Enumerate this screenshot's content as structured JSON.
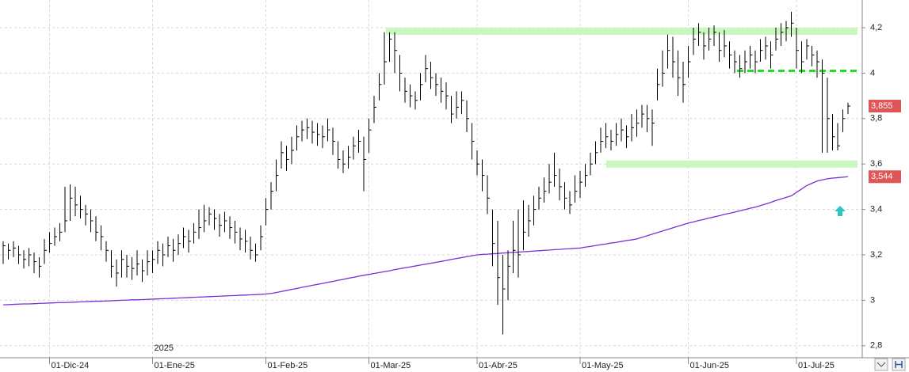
{
  "chart_data": {
    "type": "ohlc",
    "color": "#000000",
    "year_label": "2025",
    "categories": [
      null,
      null,
      null,
      null,
      null,
      null,
      null,
      null,
      null,
      "01-Dic-24",
      null,
      null,
      null,
      null,
      null,
      null,
      null,
      null,
      null,
      null,
      null,
      null,
      null,
      null,
      null,
      null,
      null,
      null,
      null,
      "01-Ene-25",
      null,
      null,
      null,
      null,
      null,
      null,
      null,
      null,
      null,
      null,
      null,
      null,
      null,
      null,
      null,
      null,
      null,
      null,
      null,
      null,
      null,
      "01-Feb-25",
      null,
      null,
      null,
      null,
      null,
      null,
      null,
      null,
      null,
      null,
      null,
      null,
      null,
      null,
      null,
      null,
      null,
      null,
      null,
      "01-Mar-25",
      null,
      null,
      null,
      null,
      null,
      null,
      null,
      null,
      null,
      null,
      null,
      null,
      null,
      null,
      null,
      null,
      null,
      null,
      null,
      null,
      "01-Abr-25",
      null,
      null,
      null,
      null,
      null,
      null,
      null,
      null,
      null,
      null,
      null,
      null,
      null,
      null,
      null,
      null,
      null,
      null,
      null,
      "01-May-25",
      null,
      null,
      null,
      null,
      null,
      null,
      null,
      null,
      null,
      null,
      null,
      null,
      null,
      null,
      null,
      null,
      null,
      null,
      null,
      null,
      "01-Jun-25",
      null,
      null,
      null,
      null,
      null,
      null,
      null,
      null,
      null,
      null,
      null,
      null,
      null,
      null,
      null,
      null,
      null,
      null,
      null,
      null,
      "01-Jul-25",
      null,
      null,
      null,
      null,
      null,
      null,
      null,
      null,
      null,
      null
    ],
    "high": [
      3.26,
      3.25,
      3.26,
      3.24,
      3.22,
      3.23,
      3.21,
      3.19,
      3.27,
      3.3,
      3.32,
      3.34,
      3.5,
      3.51,
      3.5,
      3.46,
      3.42,
      3.4,
      3.37,
      3.33,
      3.26,
      3.22,
      3.18,
      3.22,
      3.2,
      3.19,
      3.22,
      3.18,
      3.22,
      3.22,
      3.26,
      3.25,
      3.28,
      3.27,
      3.29,
      3.32,
      3.31,
      3.34,
      3.4,
      3.42,
      3.41,
      3.4,
      3.38,
      3.39,
      3.37,
      3.35,
      3.32,
      3.31,
      3.28,
      3.25,
      3.33,
      3.45,
      3.52,
      3.62,
      3.7,
      3.68,
      3.72,
      3.77,
      3.79,
      3.8,
      3.79,
      3.78,
      3.77,
      3.8,
      3.76,
      3.7,
      3.66,
      3.68,
      3.72,
      3.75,
      3.72,
      3.8,
      3.9,
      4.0,
      4.18,
      4.18,
      4.18,
      4.08,
      3.98,
      3.95,
      3.92,
      4.0,
      4.08,
      4.05,
      4.0,
      3.98,
      3.96,
      3.9,
      3.92,
      3.92,
      3.88,
      3.78,
      3.66,
      3.62,
      3.55,
      3.4,
      3.35,
      3.2,
      3.22,
      3.35,
      3.4,
      3.44,
      3.42,
      3.46,
      3.5,
      3.54,
      3.6,
      3.65,
      3.58,
      3.52,
      3.48,
      3.55,
      3.57,
      3.6,
      3.65,
      3.7,
      3.76,
      3.78,
      3.75,
      3.78,
      3.8,
      3.77,
      3.82,
      3.84,
      3.86,
      3.86,
      3.84,
      4.02,
      4.1,
      4.17,
      4.16,
      4.1,
      4.05,
      4.12,
      4.2,
      4.22,
      4.18,
      4.2,
      4.21,
      4.18,
      4.19,
      4.14,
      4.1,
      4.08,
      4.1,
      4.12,
      4.1,
      4.15,
      4.16,
      4.14,
      4.2,
      4.22,
      4.23,
      4.27,
      4.2,
      4.14,
      4.15,
      4.12,
      4.1,
      4.06,
      3.98,
      3.82,
      3.78,
      3.84,
      3.87
    ],
    "low": [
      3.16,
      3.18,
      3.19,
      3.16,
      3.14,
      3.15,
      3.12,
      3.1,
      3.16,
      3.21,
      3.24,
      3.26,
      3.3,
      3.35,
      3.37,
      3.36,
      3.33,
      3.3,
      3.26,
      3.22,
      3.17,
      3.1,
      3.06,
      3.1,
      3.1,
      3.09,
      3.11,
      3.08,
      3.11,
      3.12,
      3.16,
      3.15,
      3.19,
      3.17,
      3.2,
      3.23,
      3.21,
      3.25,
      3.27,
      3.3,
      3.33,
      3.31,
      3.28,
      3.3,
      3.27,
      3.25,
      3.22,
      3.21,
      3.18,
      3.17,
      3.22,
      3.33,
      3.4,
      3.48,
      3.58,
      3.57,
      3.6,
      3.66,
      3.7,
      3.71,
      3.69,
      3.68,
      3.67,
      3.7,
      3.64,
      3.58,
      3.56,
      3.58,
      3.62,
      3.65,
      3.48,
      3.65,
      3.78,
      3.88,
      3.95,
      4.05,
      4.0,
      3.92,
      3.87,
      3.85,
      3.84,
      3.88,
      3.96,
      3.93,
      3.9,
      3.87,
      3.84,
      3.78,
      3.8,
      3.82,
      3.74,
      3.62,
      3.55,
      3.48,
      3.38,
      3.15,
      2.98,
      2.85,
      3.0,
      3.12,
      3.1,
      3.22,
      3.28,
      3.33,
      3.4,
      3.43,
      3.47,
      3.5,
      3.44,
      3.4,
      3.38,
      3.43,
      3.45,
      3.5,
      3.55,
      3.6,
      3.65,
      3.67,
      3.66,
      3.68,
      3.7,
      3.67,
      3.7,
      3.72,
      3.76,
      3.74,
      3.68,
      3.88,
      3.94,
      4.02,
      3.98,
      3.9,
      3.87,
      3.98,
      4.08,
      4.12,
      4.06,
      4.1,
      4.12,
      4.05,
      4.07,
      4.02,
      4.0,
      3.98,
      4.0,
      4.02,
      4.0,
      4.05,
      4.06,
      4.02,
      4.1,
      4.12,
      4.14,
      4.16,
      4.02,
      4.0,
      4.06,
      4.03,
      3.98,
      3.65,
      3.65,
      3.66,
      3.66,
      3.74,
      3.82
    ],
    "close": [
      3.24,
      3.22,
      3.23,
      3.2,
      3.18,
      3.2,
      3.17,
      3.15,
      3.22,
      3.25,
      3.28,
      3.3,
      3.35,
      3.45,
      3.42,
      3.4,
      3.38,
      3.35,
      3.3,
      3.28,
      3.22,
      3.15,
      3.12,
      3.18,
      3.15,
      3.14,
      3.16,
      3.13,
      3.17,
      3.18,
      3.22,
      3.2,
      3.24,
      3.22,
      3.25,
      3.28,
      3.26,
      3.3,
      3.32,
      3.35,
      3.38,
      3.36,
      3.33,
      3.35,
      3.32,
      3.3,
      3.27,
      3.26,
      3.22,
      3.2,
      3.28,
      3.4,
      3.48,
      3.55,
      3.65,
      3.62,
      3.66,
      3.72,
      3.75,
      3.76,
      3.74,
      3.73,
      3.72,
      3.75,
      3.7,
      3.62,
      3.6,
      3.63,
      3.68,
      3.7,
      3.62,
      3.75,
      3.85,
      3.95,
      4.05,
      4.15,
      4.1,
      4.0,
      3.92,
      3.9,
      3.88,
      3.95,
      4.02,
      3.98,
      3.95,
      3.92,
      3.9,
      3.82,
      3.85,
      3.88,
      3.8,
      3.7,
      3.6,
      3.55,
      3.45,
      3.25,
      3.1,
      3.05,
      3.15,
      3.22,
      3.2,
      3.3,
      3.35,
      3.4,
      3.45,
      3.48,
      3.52,
      3.55,
      3.5,
      3.45,
      3.42,
      3.48,
      3.52,
      3.55,
      3.6,
      3.65,
      3.7,
      3.72,
      3.7,
      3.73,
      3.75,
      3.72,
      3.76,
      3.78,
      3.82,
      3.8,
      3.78,
      3.95,
      4.0,
      4.1,
      4.05,
      3.98,
      3.95,
      4.05,
      4.15,
      4.18,
      4.12,
      4.15,
      4.18,
      4.1,
      4.12,
      4.08,
      4.05,
      4.02,
      4.05,
      4.08,
      4.05,
      4.1,
      4.12,
      4.08,
      4.15,
      4.18,
      4.2,
      4.22,
      4.1,
      4.05,
      4.12,
      4.08,
      4.05,
      4.0,
      3.8,
      3.72,
      3.68,
      3.8,
      3.855
    ],
    "moving_average": {
      "color": "#7b2fd6",
      "values": [
        2.98,
        2.981,
        2.982,
        2.983,
        2.984,
        2.984,
        2.985,
        2.986,
        2.987,
        2.988,
        2.989,
        2.99,
        2.99,
        2.991,
        2.992,
        2.993,
        2.994,
        2.995,
        2.996,
        2.996,
        2.997,
        2.998,
        2.999,
        3.0,
        3.001,
        3.002,
        3.002,
        3.003,
        3.004,
        3.005,
        3.006,
        3.007,
        3.008,
        3.009,
        3.01,
        3.011,
        3.012,
        3.013,
        3.014,
        3.015,
        3.016,
        3.017,
        3.018,
        3.019,
        3.02,
        3.021,
        3.022,
        3.023,
        3.024,
        3.025,
        3.026,
        3.028,
        3.03,
        3.034,
        3.039,
        3.043,
        3.048,
        3.052,
        3.057,
        3.061,
        3.066,
        3.07,
        3.074,
        3.079,
        3.083,
        3.088,
        3.092,
        3.097,
        3.101,
        3.106,
        3.11,
        3.114,
        3.118,
        3.122,
        3.126,
        3.13,
        3.135,
        3.139,
        3.143,
        3.147,
        3.151,
        3.155,
        3.159,
        3.163,
        3.167,
        3.171,
        3.175,
        3.18,
        3.184,
        3.188,
        3.192,
        3.196,
        3.2,
        3.202,
        3.203,
        3.205,
        3.206,
        3.208,
        3.209,
        3.211,
        3.212,
        3.214,
        3.215,
        3.217,
        3.218,
        3.22,
        3.221,
        3.223,
        3.224,
        3.226,
        3.227,
        3.229,
        3.23,
        3.234,
        3.237,
        3.241,
        3.245,
        3.248,
        3.252,
        3.255,
        3.259,
        3.263,
        3.266,
        3.27,
        3.277,
        3.284,
        3.291,
        3.298,
        3.305,
        3.312,
        3.319,
        3.326,
        3.333,
        3.34,
        3.345,
        3.351,
        3.356,
        3.362,
        3.367,
        3.372,
        3.378,
        3.383,
        3.388,
        3.394,
        3.399,
        3.405,
        3.41,
        3.417,
        3.424,
        3.431,
        3.439,
        3.446,
        3.453,
        3.46,
        3.475,
        3.49,
        3.505,
        3.515,
        3.525,
        3.53,
        3.535,
        3.538,
        3.54,
        3.542,
        3.544
      ]
    },
    "levels": [
      {
        "value": 4.185,
        "color": "#c8f7c0",
        "style": "band"
      },
      {
        "value": 3.6,
        "color": "#c8f7c0",
        "style": "band"
      },
      {
        "value": 4.01,
        "color": "#22dd22",
        "style": "dashed"
      }
    ],
    "price_tags": [
      {
        "value": 3.855,
        "label": "3,855"
      },
      {
        "value": 3.544,
        "label": "3,544"
      }
    ],
    "tag_color": "#e05555",
    "ylim": [
      2.747,
      4.322
    ],
    "yticks": [
      {
        "value": 2.8,
        "label": "2,8"
      },
      3,
      {
        "value": 3.2,
        "label": "3,2"
      },
      {
        "value": 3.4,
        "label": "3,4"
      },
      {
        "value": 3.6,
        "label": "3,6"
      },
      {
        "value": 3.8,
        "label": "3,8"
      },
      4,
      {
        "value": 4.2,
        "label": "4,2"
      }
    ],
    "grid": true
  }
}
